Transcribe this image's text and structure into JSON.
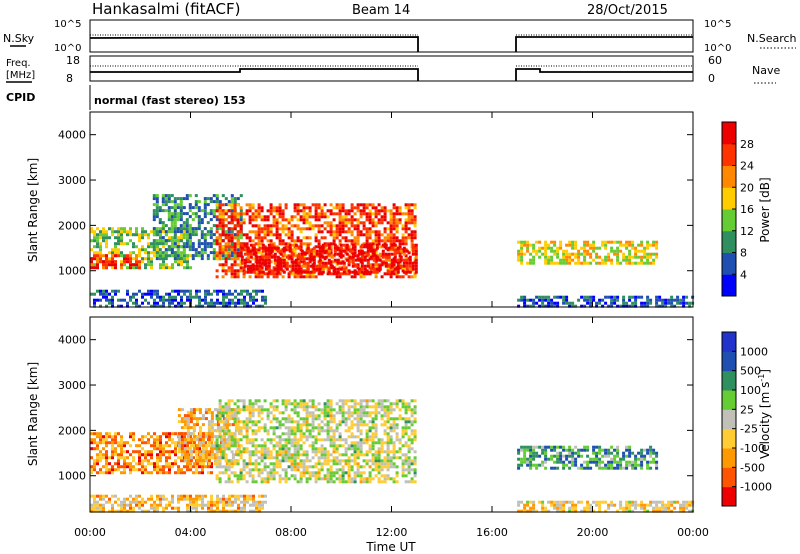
{
  "header": {
    "station": "Hankasalmi (fitACF)",
    "beam": "Beam 14",
    "date": "28/Oct/2015"
  },
  "aux": {
    "nsky_label": "N.Sky",
    "nsearch_label": "N.Search",
    "freq_label_1": "Freq.",
    "freq_label_2": "[MHz]",
    "nave_label": "Nave",
    "cpid_label": "CPID",
    "cpid_text": "normal (fast stereo) 153",
    "noise_ticks_left": [
      "10^5",
      "10^0"
    ],
    "noise_ticks_right": [
      "10^5",
      "10^0"
    ],
    "freq_ticks": [
      "18",
      "8"
    ],
    "nave_ticks": [
      "60",
      "0"
    ]
  },
  "time_axis": {
    "label": "Time UT",
    "ticks": [
      "00:00",
      "04:00",
      "08:00",
      "12:00",
      "16:00",
      "20:00",
      "00:00"
    ]
  },
  "colors": {
    "power": [
      "#0000ff",
      "#1f4fb0",
      "#2f8f5f",
      "#66cc33",
      "#ffcc00",
      "#ff8800",
      "#ff3300",
      "#ee0000"
    ],
    "velocity": [
      "#ee0000",
      "#ff5500",
      "#ff9900",
      "#ffcc33",
      "#c0c0b8",
      "#66cc33",
      "#2f8f5f",
      "#1f4fb0",
      "#2233cc"
    ]
  },
  "chart_data": [
    {
      "type": "heatmap",
      "name": "power-panel",
      "ylabel": "Slant Range [km]",
      "ylim": [
        200,
        4500
      ],
      "yticks": [
        "4000",
        "3000",
        "2000",
        "1000"
      ],
      "xlim": [
        0,
        24
      ],
      "colorbar": {
        "label": "Power [dB]",
        "ticks": [
          "28",
          "24",
          "20",
          "16",
          "12",
          "8",
          "4"
        ],
        "range": [
          0,
          32
        ]
      },
      "regions": [
        {
          "t0": 0.0,
          "t1": 4.0,
          "r0": 1100,
          "r1": 2000,
          "level": 0.45
        },
        {
          "t0": 0.0,
          "t1": 2.0,
          "r0": 1100,
          "r1": 1400,
          "level": 0.8
        },
        {
          "t0": 2.5,
          "t1": 6.0,
          "r0": 1300,
          "r1": 2700,
          "level": 0.3
        },
        {
          "t0": 5.0,
          "t1": 13.0,
          "r0": 900,
          "r1": 2500,
          "level": 0.75
        },
        {
          "t0": 6.0,
          "t1": 13.0,
          "r0": 1000,
          "r1": 1600,
          "level": 0.9
        },
        {
          "t0": 0.0,
          "t1": 7.0,
          "r0": 250,
          "r1": 600,
          "level": 0.2
        },
        {
          "t0": 17.0,
          "t1": 22.5,
          "r0": 1200,
          "r1": 1700,
          "level": 0.55
        },
        {
          "t0": 17.0,
          "t1": 24.0,
          "r0": 250,
          "r1": 500,
          "level": 0.2
        }
      ]
    },
    {
      "type": "heatmap",
      "name": "velocity-panel",
      "ylabel": "Slant Range [km]",
      "ylim": [
        200,
        4500
      ],
      "yticks": [
        "4000",
        "3000",
        "2000",
        "1000"
      ],
      "xlim": [
        0,
        24
      ],
      "colorbar": {
        "label": "Velocity [m s^-1]",
        "ticks": [
          "1000",
          "500",
          "100",
          "25",
          "-25",
          "-100",
          "-500",
          "-1000"
        ]
      },
      "regions": [
        {
          "t0": 0.0,
          "t1": 4.8,
          "r0": 1100,
          "r1": 2000,
          "level": 0.25
        },
        {
          "t0": 3.5,
          "t1": 6.0,
          "r0": 1300,
          "r1": 2500,
          "level": 0.35
        },
        {
          "t0": 5.0,
          "t1": 13.0,
          "r0": 900,
          "r1": 2700,
          "level": 0.5
        },
        {
          "t0": 0.0,
          "t1": 7.0,
          "r0": 250,
          "r1": 600,
          "level": 0.38
        },
        {
          "t0": 17.0,
          "t1": 22.5,
          "r0": 1200,
          "r1": 1700,
          "level": 0.7
        },
        {
          "t0": 17.0,
          "t1": 24.0,
          "r0": 250,
          "r1": 500,
          "level": 0.4
        }
      ]
    }
  ]
}
